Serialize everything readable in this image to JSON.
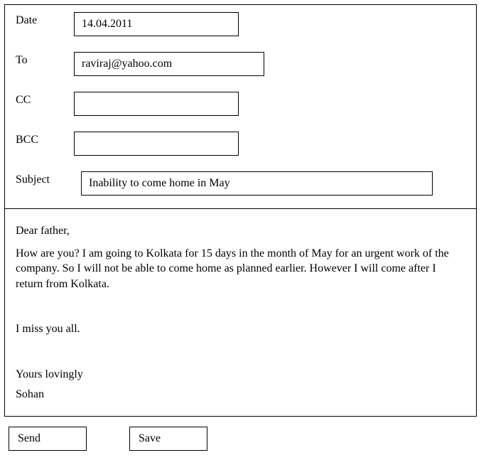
{
  "form": {
    "labels": {
      "date": "Date",
      "to": "To",
      "cc": "CC",
      "bcc": "BCC",
      "subject": "Subject"
    },
    "fields": {
      "date": "14.04.2011",
      "to": "raviraj@yahoo.com",
      "cc": "",
      "bcc": "",
      "subject": "Inability to come home in May"
    }
  },
  "body": {
    "salutation": "Dear father,",
    "para": "How are you? I am going to Kolkata for 15 days in the month of May for an urgent work of the company. So I will not be able to come home as planned earlier. However I will come after I return from Kolkata.",
    "miss": "I miss you all.",
    "closing": "Yours lovingly",
    "name": "Sohan"
  },
  "buttons": {
    "send": "Send",
    "save": "Save"
  }
}
